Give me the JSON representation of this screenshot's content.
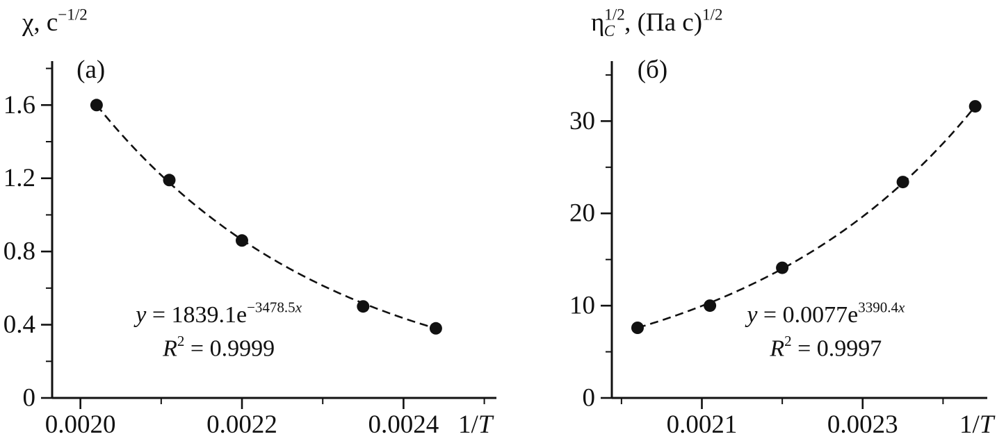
{
  "figure": {
    "background": "#ffffff",
    "ink_color": "#111111"
  },
  "chart_data": [
    {
      "type": "scatter",
      "panel_label": "(а)",
      "title_segments": [
        {
          "t": "χ, с",
          "s": "n"
        },
        {
          "t": "−1/2",
          "s": "sup"
        }
      ],
      "x_axis_label_segments": [
        {
          "t": "1/",
          "s": "n"
        },
        {
          "t": "T",
          "s": "i"
        }
      ],
      "x": [
        0.00202,
        0.00211,
        0.0022,
        0.00235,
        0.00244
      ],
      "y": [
        1.6,
        1.19,
        0.86,
        0.5,
        0.38
      ],
      "fit": {
        "type": "exponential",
        "a": 1839.1,
        "b": -3478.5,
        "r2": 0.9999
      },
      "equation_segments": [
        {
          "t": "y",
          "s": "i"
        },
        {
          "t": " = 1839.1e",
          "s": "n"
        },
        {
          "t": "−3478.5",
          "s": "sup"
        },
        {
          "t": "x",
          "s": "isup"
        }
      ],
      "r2_segments": [
        {
          "t": "R",
          "s": "i"
        },
        {
          "t": "2",
          "s": "sup"
        },
        {
          "t": " = 0.9999",
          "s": "n"
        }
      ],
      "xlim": [
        0.001965,
        0.002515
      ],
      "ylim": [
        0,
        1.84
      ],
      "xticks_major": [
        0.002,
        0.0022,
        0.0024
      ],
      "xtick_labels": [
        "0.0020",
        "0.0022",
        "0.0024"
      ],
      "xticks_minor": [
        0.0021,
        0.0023,
        0.0025
      ],
      "yticks_major": [
        0,
        0.4,
        0.8,
        1.2,
        1.6
      ],
      "ytick_labels": [
        "0",
        "0.4",
        "0.8",
        "1.2",
        "1.6"
      ],
      "yticks_minor": [
        0.2,
        0.6,
        1.0,
        1.4,
        1.8
      ],
      "grid": false,
      "legend": "none",
      "line_style": "dashed",
      "marker": "filled-circle"
    },
    {
      "type": "scatter",
      "panel_label": "(б)",
      "title_segments": [
        {
          "t": "η",
          "s": "n"
        },
        {
          "t": "1/2",
          "s": "sup"
        },
        {
          "t": "C",
          "s": "isub",
          "dx": -30
        },
        {
          "t": ", (Па с)",
          "s": "n",
          "dx": 14
        },
        {
          "t": "1/2",
          "s": "sup"
        }
      ],
      "x_axis_label_segments": [
        {
          "t": "1/",
          "s": "n"
        },
        {
          "t": "T",
          "s": "i"
        }
      ],
      "x": [
        0.00202,
        0.00211,
        0.0022,
        0.00235,
        0.00244
      ],
      "y": [
        7.6,
        10.0,
        14.1,
        23.4,
        31.6
      ],
      "fit": {
        "type": "exponential",
        "a": 0.0077,
        "b": 3390.4,
        "r2": 0.9997
      },
      "equation_segments": [
        {
          "t": "y",
          "s": "i"
        },
        {
          "t": " = 0.0077e",
          "s": "n"
        },
        {
          "t": "3390.4",
          "s": "sup"
        },
        {
          "t": "x",
          "s": "isup"
        }
      ],
      "r2_segments": [
        {
          "t": "R",
          "s": "i"
        },
        {
          "t": "2",
          "s": "sup"
        },
        {
          "t": " = 0.9997",
          "s": "n"
        }
      ],
      "xlim": [
        0.001988,
        0.002455
      ],
      "ylim": [
        0,
        36.5
      ],
      "xticks_major": [
        0.0021,
        0.0023
      ],
      "xtick_labels": [
        "0.0021",
        "0.0023"
      ],
      "xticks_minor": [
        0.002,
        0.0022,
        0.0024
      ],
      "yticks_major": [
        0,
        10,
        20,
        30
      ],
      "ytick_labels": [
        "0",
        "10",
        "20",
        "30"
      ],
      "yticks_minor": [
        5,
        15,
        25,
        35
      ],
      "grid": false,
      "legend": "none",
      "line_style": "dashed",
      "marker": "filled-circle"
    }
  ]
}
